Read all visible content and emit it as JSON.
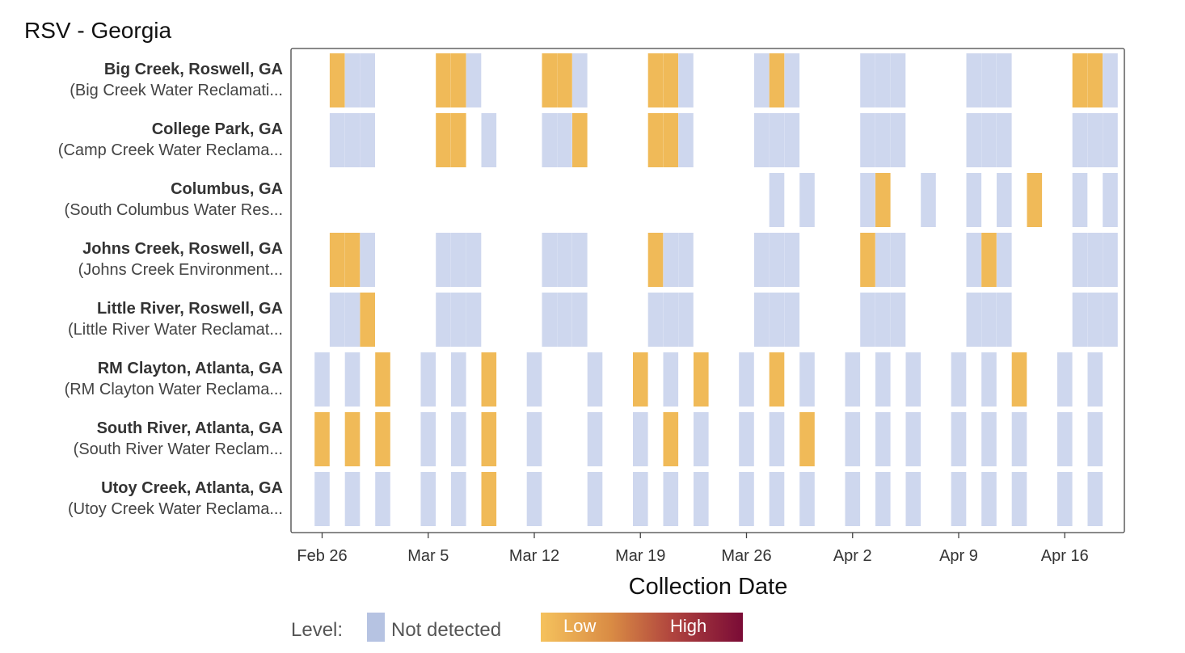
{
  "chart_data": {
    "type": "heatmap",
    "title": "RSV - Georgia",
    "xlabel": "Collection Date",
    "x_ticks": [
      "Feb 26",
      "Mar 5",
      "Mar 12",
      "Mar 19",
      "Mar 26",
      "Apr 2",
      "Apr 9",
      "Apr 16"
    ],
    "x_range_days": [
      -2,
      53
    ],
    "x_origin_date": "Feb 26",
    "levels": {
      "N": {
        "label": "Not detected",
        "color": "#ced7ee"
      },
      "L": {
        "label": "Low",
        "color": "#f0ba58"
      }
    },
    "legend": {
      "prefix": "Level:",
      "not_detected": "Not detected",
      "low": "Low",
      "high": "High",
      "nd_color": "#b6c3e2"
    },
    "series": [
      {
        "name": "Big Creek, Roswell, GA",
        "plant": "(Big Creek Water Reclamati...",
        "samples": [
          [
            1,
            "L"
          ],
          [
            2,
            "N"
          ],
          [
            3,
            "N"
          ],
          [
            8,
            "L"
          ],
          [
            9,
            "L"
          ],
          [
            10,
            "N"
          ],
          [
            15,
            "L"
          ],
          [
            16,
            "L"
          ],
          [
            17,
            "N"
          ],
          [
            22,
            "L"
          ],
          [
            23,
            "L"
          ],
          [
            24,
            "N"
          ],
          [
            29,
            "N"
          ],
          [
            30,
            "L"
          ],
          [
            31,
            "N"
          ],
          [
            36,
            "N"
          ],
          [
            37,
            "N"
          ],
          [
            38,
            "N"
          ],
          [
            43,
            "N"
          ],
          [
            44,
            "N"
          ],
          [
            45,
            "N"
          ],
          [
            50,
            "L"
          ],
          [
            51,
            "L"
          ],
          [
            52,
            "N"
          ]
        ]
      },
      {
        "name": "College Park, GA",
        "plant": "(Camp Creek Water Reclama...",
        "samples": [
          [
            1,
            "N"
          ],
          [
            2,
            "N"
          ],
          [
            3,
            "N"
          ],
          [
            8,
            "L"
          ],
          [
            9,
            "L"
          ],
          [
            11,
            "N"
          ],
          [
            15,
            "N"
          ],
          [
            16,
            "N"
          ],
          [
            17,
            "L"
          ],
          [
            22,
            "L"
          ],
          [
            23,
            "L"
          ],
          [
            24,
            "N"
          ],
          [
            29,
            "N"
          ],
          [
            30,
            "N"
          ],
          [
            31,
            "N"
          ],
          [
            36,
            "N"
          ],
          [
            37,
            "N"
          ],
          [
            38,
            "N"
          ],
          [
            43,
            "N"
          ],
          [
            44,
            "N"
          ],
          [
            45,
            "N"
          ],
          [
            50,
            "N"
          ],
          [
            51,
            "N"
          ],
          [
            52,
            "N"
          ]
        ]
      },
      {
        "name": "Columbus, GA",
        "plant": "(South Columbus Water Res...",
        "samples": [
          [
            30,
            "N"
          ],
          [
            32,
            "N"
          ],
          [
            36,
            "N"
          ],
          [
            37,
            "L"
          ],
          [
            40,
            "N"
          ],
          [
            43,
            "N"
          ],
          [
            45,
            "N"
          ],
          [
            47,
            "L"
          ],
          [
            50,
            "N"
          ],
          [
            52,
            "N"
          ]
        ]
      },
      {
        "name": "Johns Creek, Roswell, GA",
        "plant": "(Johns Creek Environment...",
        "samples": [
          [
            1,
            "L"
          ],
          [
            2,
            "L"
          ],
          [
            3,
            "N"
          ],
          [
            8,
            "N"
          ],
          [
            9,
            "N"
          ],
          [
            10,
            "N"
          ],
          [
            15,
            "N"
          ],
          [
            16,
            "N"
          ],
          [
            17,
            "N"
          ],
          [
            22,
            "L"
          ],
          [
            23,
            "N"
          ],
          [
            24,
            "N"
          ],
          [
            29,
            "N"
          ],
          [
            30,
            "N"
          ],
          [
            31,
            "N"
          ],
          [
            36,
            "L"
          ],
          [
            37,
            "N"
          ],
          [
            38,
            "N"
          ],
          [
            43,
            "N"
          ],
          [
            44,
            "L"
          ],
          [
            45,
            "N"
          ],
          [
            50,
            "N"
          ],
          [
            51,
            "N"
          ],
          [
            52,
            "N"
          ]
        ]
      },
      {
        "name": "Little River, Roswell, GA",
        "plant": "(Little River Water Reclamat...",
        "samples": [
          [
            1,
            "N"
          ],
          [
            2,
            "N"
          ],
          [
            3,
            "L"
          ],
          [
            8,
            "N"
          ],
          [
            9,
            "N"
          ],
          [
            10,
            "N"
          ],
          [
            15,
            "N"
          ],
          [
            16,
            "N"
          ],
          [
            17,
            "N"
          ],
          [
            22,
            "N"
          ],
          [
            23,
            "N"
          ],
          [
            24,
            "N"
          ],
          [
            29,
            "N"
          ],
          [
            30,
            "N"
          ],
          [
            31,
            "N"
          ],
          [
            36,
            "N"
          ],
          [
            37,
            "N"
          ],
          [
            38,
            "N"
          ],
          [
            43,
            "N"
          ],
          [
            44,
            "N"
          ],
          [
            45,
            "N"
          ],
          [
            50,
            "N"
          ],
          [
            51,
            "N"
          ],
          [
            52,
            "N"
          ]
        ]
      },
      {
        "name": "RM Clayton, Atlanta, GA",
        "plant": "(RM Clayton Water Reclama...",
        "samples": [
          [
            0,
            "N"
          ],
          [
            2,
            "N"
          ],
          [
            4,
            "L"
          ],
          [
            7,
            "N"
          ],
          [
            9,
            "N"
          ],
          [
            11,
            "L"
          ],
          [
            14,
            "N"
          ],
          [
            18,
            "N"
          ],
          [
            21,
            "L"
          ],
          [
            23,
            "N"
          ],
          [
            25,
            "L"
          ],
          [
            28,
            "N"
          ],
          [
            30,
            "L"
          ],
          [
            32,
            "N"
          ],
          [
            35,
            "N"
          ],
          [
            37,
            "N"
          ],
          [
            39,
            "N"
          ],
          [
            42,
            "N"
          ],
          [
            44,
            "N"
          ],
          [
            46,
            "L"
          ],
          [
            49,
            "N"
          ],
          [
            51,
            "N"
          ]
        ]
      },
      {
        "name": "South River, Atlanta, GA",
        "plant": "(South River Water Reclam...",
        "samples": [
          [
            0,
            "L"
          ],
          [
            2,
            "L"
          ],
          [
            4,
            "L"
          ],
          [
            7,
            "N"
          ],
          [
            9,
            "N"
          ],
          [
            11,
            "L"
          ],
          [
            14,
            "N"
          ],
          [
            18,
            "N"
          ],
          [
            21,
            "N"
          ],
          [
            23,
            "L"
          ],
          [
            25,
            "N"
          ],
          [
            28,
            "N"
          ],
          [
            30,
            "N"
          ],
          [
            32,
            "L"
          ],
          [
            35,
            "N"
          ],
          [
            37,
            "N"
          ],
          [
            39,
            "N"
          ],
          [
            42,
            "N"
          ],
          [
            44,
            "N"
          ],
          [
            46,
            "N"
          ],
          [
            49,
            "N"
          ],
          [
            51,
            "N"
          ]
        ]
      },
      {
        "name": "Utoy Creek, Atlanta, GA",
        "plant": "(Utoy Creek Water Reclama...",
        "samples": [
          [
            0,
            "N"
          ],
          [
            2,
            "N"
          ],
          [
            4,
            "N"
          ],
          [
            7,
            "N"
          ],
          [
            9,
            "N"
          ],
          [
            11,
            "L"
          ],
          [
            14,
            "N"
          ],
          [
            18,
            "N"
          ],
          [
            21,
            "N"
          ],
          [
            23,
            "N"
          ],
          [
            25,
            "N"
          ],
          [
            28,
            "N"
          ],
          [
            30,
            "N"
          ],
          [
            32,
            "N"
          ],
          [
            35,
            "N"
          ],
          [
            37,
            "N"
          ],
          [
            39,
            "N"
          ],
          [
            42,
            "N"
          ],
          [
            44,
            "N"
          ],
          [
            46,
            "N"
          ],
          [
            49,
            "N"
          ],
          [
            51,
            "N"
          ]
        ]
      }
    ]
  }
}
